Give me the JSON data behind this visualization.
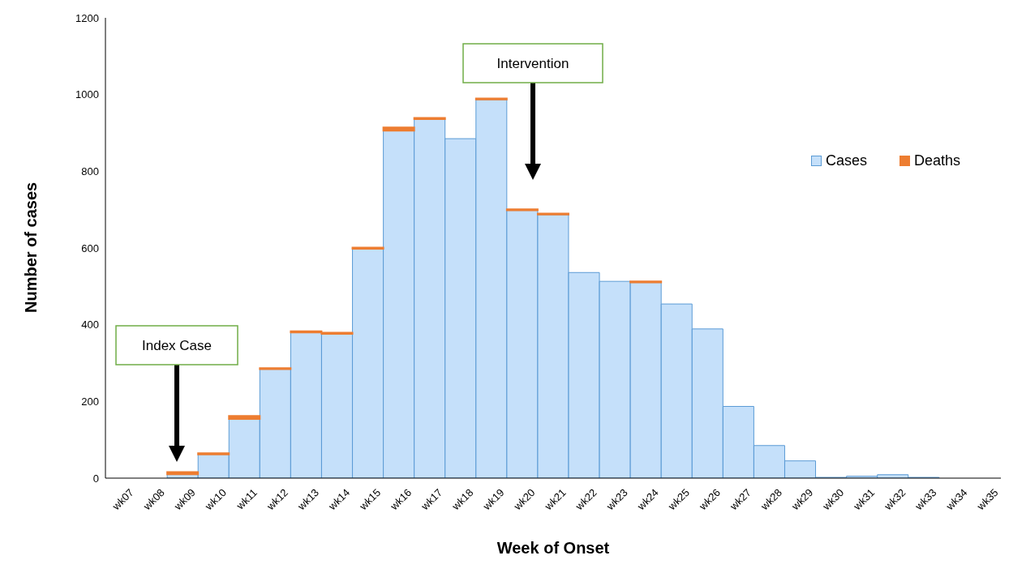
{
  "chart_data": {
    "type": "bar",
    "stacked": true,
    "xlabel": "Week of Onset",
    "ylabel": "Number of cases",
    "categories": [
      "wk07",
      "wk08",
      "wk09",
      "wk10",
      "wk11",
      "wk12",
      "wk13",
      "wk14",
      "wk15",
      "wk16",
      "wk17",
      "wk18",
      "wk19",
      "wk20",
      "wk21",
      "wk22",
      "wk23",
      "wk24",
      "wk25",
      "wk26",
      "wk27",
      "wk28",
      "wk29",
      "wk30",
      "wk31",
      "wk32",
      "wk33",
      "wk34",
      "wk35"
    ],
    "series": [
      {
        "name": "Cases",
        "color": "#c5e0fa",
        "values": [
          null,
          null,
          10,
          62,
          154,
          284,
          380,
          376,
          598,
          906,
          936,
          885,
          987,
          698,
          687,
          536,
          513,
          510,
          454,
          389,
          187,
          85,
          45,
          2,
          5,
          9,
          2,
          null,
          null
        ]
      },
      {
        "name": "Deaths",
        "color": "#ed7d31",
        "values": [
          null,
          null,
          6,
          3,
          8,
          3,
          3,
          3,
          3,
          8,
          3,
          0,
          3,
          3,
          3,
          0,
          0,
          3,
          0,
          0,
          0,
          0,
          0,
          0,
          0,
          0,
          0,
          null,
          null
        ]
      }
    ],
    "ylim": [
      0,
      1200
    ],
    "yticks": [
      0,
      200,
      400,
      600,
      800,
      1000,
      1200
    ],
    "legend": "top right",
    "annotations": [
      "Index Case",
      "Intervention"
    ]
  }
}
